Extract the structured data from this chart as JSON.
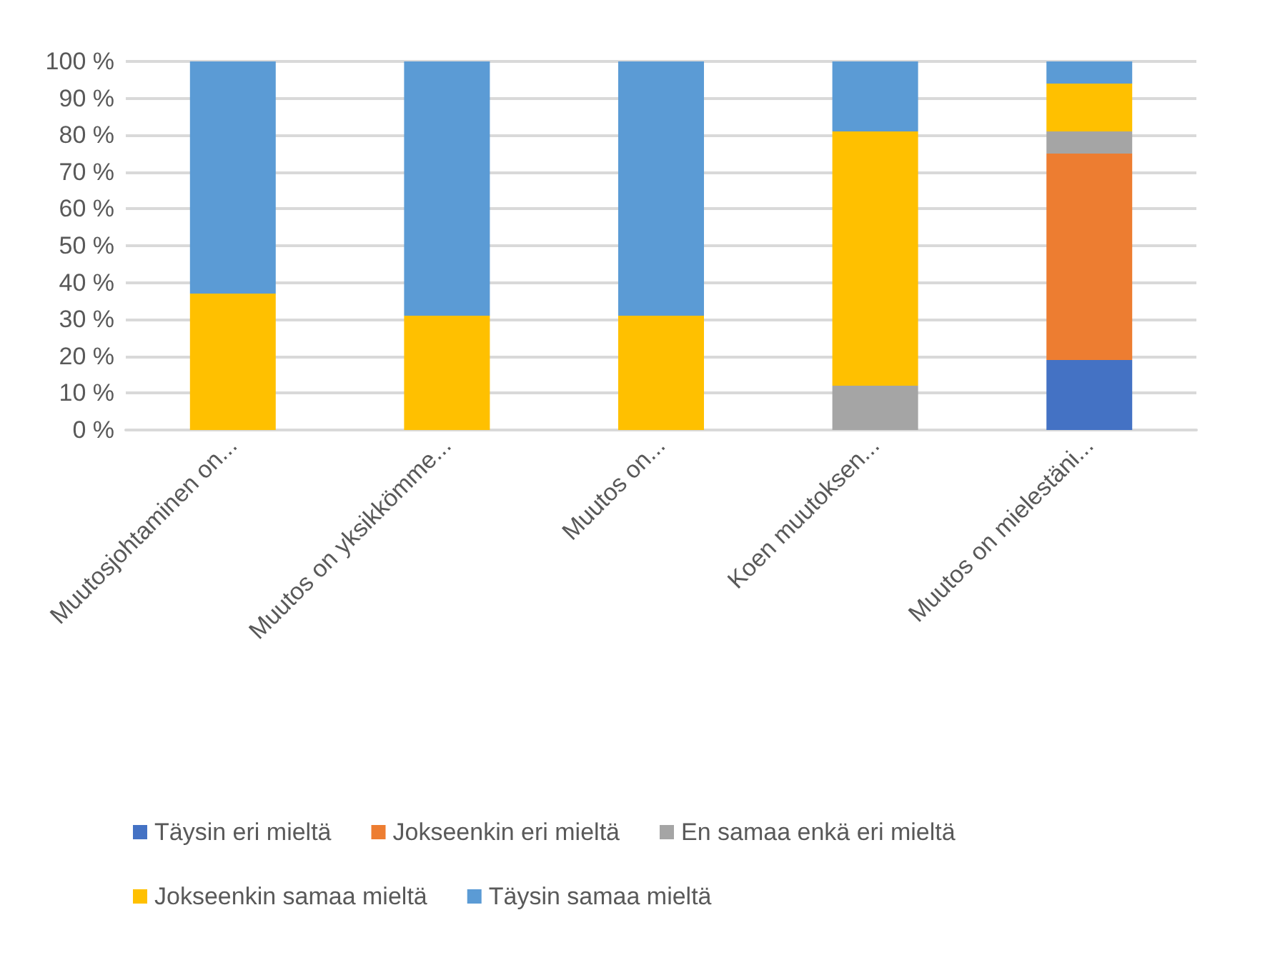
{
  "chart_data": {
    "type": "bar",
    "stacked": true,
    "categories": [
      "Muutosjohtaminen on...",
      "Muutos on yksikkömme...",
      "Muutos on...",
      "Koen muutoksen...",
      "Muutos on mielestäni..."
    ],
    "series": [
      {
        "name": "Täysin eri mieltä",
        "color": "#4472c4",
        "values": [
          0,
          0,
          0,
          0,
          19
        ]
      },
      {
        "name": "Jokseenkin eri mieltä",
        "color": "#ed7d31",
        "values": [
          0,
          0,
          0,
          0,
          56
        ]
      },
      {
        "name": "En samaa enkä eri mieltä",
        "color": "#a5a5a5",
        "values": [
          0,
          0,
          0,
          12,
          6
        ]
      },
      {
        "name": "Jokseenkin samaa mieltä",
        "color": "#ffc000",
        "values": [
          37,
          31,
          31,
          69,
          13
        ]
      },
      {
        "name": "Täysin samaa mieltä",
        "color": "#5b9bd5",
        "values": [
          63,
          69,
          69,
          19,
          6
        ]
      }
    ],
    "ylim": [
      0,
      100
    ],
    "yticks": [
      {
        "value": 0,
        "label": "0 %"
      },
      {
        "value": 10,
        "label": "10 %"
      },
      {
        "value": 20,
        "label": "20 %"
      },
      {
        "value": 30,
        "label": "30 %"
      },
      {
        "value": 40,
        "label": "40 %"
      },
      {
        "value": 50,
        "label": "50 %"
      },
      {
        "value": 60,
        "label": "60 %"
      },
      {
        "value": 70,
        "label": "70 %"
      },
      {
        "value": 80,
        "label": "80 %"
      },
      {
        "value": 90,
        "label": "90 %"
      },
      {
        "value": 100,
        "label": "100 %"
      }
    ],
    "grid": "y",
    "legend": "bottom"
  }
}
